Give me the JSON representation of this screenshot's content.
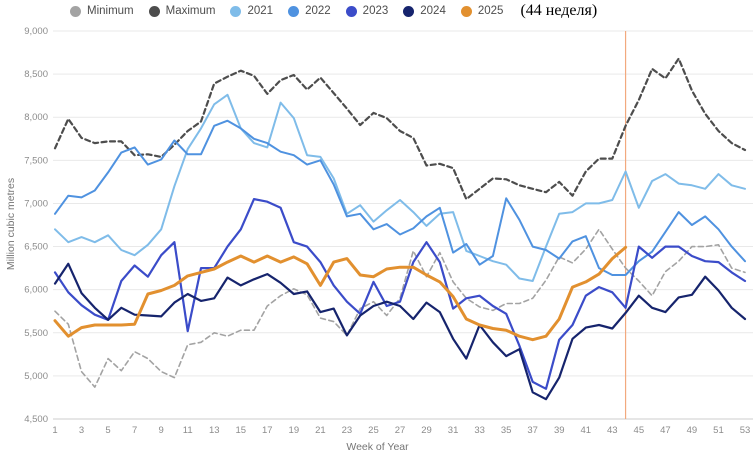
{
  "legend": {
    "annotation": "(44 неделя)"
  },
  "chart_data": {
    "type": "line",
    "title": "",
    "xlabel": "Week of Year",
    "ylabel": "Million cubic metres",
    "xlim": [
      1,
      53
    ],
    "ylim": [
      4500,
      9000
    ],
    "x_ticks": [
      1,
      3,
      5,
      7,
      9,
      11,
      13,
      15,
      17,
      19,
      21,
      23,
      25,
      27,
      29,
      31,
      33,
      35,
      37,
      39,
      41,
      43,
      45,
      47,
      49,
      51,
      53
    ],
    "y_ticks": [
      9000,
      8500,
      8000,
      7500,
      7000,
      6500,
      6000,
      5500,
      5000,
      4500
    ],
    "grid": true,
    "legend_position": "top",
    "marker_line": {
      "week": 44,
      "color": "#f2a97e"
    },
    "colors": {
      "grid": "#e9e9e9",
      "axis": "#cccccc",
      "tick_text": "#8c8c8c"
    },
    "series": [
      {
        "name": "Minimum",
        "color": "#a3a3a3",
        "style": "dashed",
        "width": 1.6,
        "values": [
          5750,
          5600,
          5050,
          4870,
          5200,
          5060,
          5280,
          5200,
          5050,
          4980,
          5360,
          5390,
          5500,
          5460,
          5530,
          5530,
          5810,
          5930,
          6010,
          5940,
          5670,
          5630,
          5470,
          5780,
          5860,
          5700,
          5900,
          6450,
          6150,
          6430,
          6090,
          5900,
          5800,
          5760,
          5840,
          5840,
          5900,
          6110,
          6380,
          6310,
          6470,
          6700,
          6470,
          6250,
          6100,
          5930,
          6210,
          6330,
          6500,
          6500,
          6520,
          6250,
          6200
        ]
      },
      {
        "name": "Maximum",
        "color": "#4d4d4d",
        "style": "dashed",
        "width": 2.2,
        "values": [
          7640,
          7980,
          7760,
          7700,
          7720,
          7720,
          7560,
          7570,
          7540,
          7680,
          7840,
          7950,
          8390,
          8470,
          8540,
          8480,
          8270,
          8430,
          8490,
          8320,
          8460,
          8280,
          8100,
          7910,
          8050,
          7990,
          7840,
          7760,
          7440,
          7460,
          7410,
          7050,
          7170,
          7290,
          7280,
          7210,
          7170,
          7130,
          7250,
          7090,
          7370,
          7520,
          7520,
          7900,
          8200,
          8560,
          8450,
          8680,
          8310,
          8040,
          7840,
          7700,
          7620
        ]
      },
      {
        "name": "2021",
        "color": "#7fbce9",
        "style": "solid",
        "width": 2,
        "values": [
          6700,
          6550,
          6610,
          6550,
          6630,
          6460,
          6400,
          6520,
          6700,
          7200,
          7630,
          7870,
          8150,
          8260,
          7870,
          7700,
          7650,
          8170,
          7990,
          7560,
          7540,
          7290,
          6880,
          6980,
          6790,
          6920,
          7040,
          6900,
          6740,
          6880,
          6900,
          6450,
          6390,
          6330,
          6290,
          6130,
          6100,
          6500,
          6880,
          6900,
          7000,
          7000,
          7040,
          7370,
          6950,
          7260,
          7340,
          7230,
          7210,
          7170,
          7340,
          7210,
          7170
        ]
      },
      {
        "name": "2022",
        "color": "#4f92e0",
        "style": "solid",
        "width": 2,
        "values": [
          6880,
          7090,
          7070,
          7150,
          7360,
          7590,
          7650,
          7450,
          7510,
          7730,
          7570,
          7570,
          7900,
          7960,
          7870,
          7750,
          7700,
          7600,
          7560,
          7450,
          7500,
          7220,
          6850,
          6880,
          6700,
          6760,
          6640,
          6710,
          6850,
          6950,
          6430,
          6530,
          6290,
          6390,
          7060,
          6810,
          6500,
          6460,
          6360,
          6560,
          6620,
          6250,
          6170,
          6170,
          6330,
          6440,
          6670,
          6900,
          6750,
          6850,
          6700,
          6500,
          6330
        ]
      },
      {
        "name": "2023",
        "color": "#3b4cc9",
        "style": "solid",
        "width": 2.2,
        "values": [
          6200,
          5970,
          5820,
          5710,
          5650,
          6100,
          6280,
          6150,
          6400,
          6550,
          5520,
          6250,
          6250,
          6500,
          6700,
          7050,
          7020,
          6950,
          6550,
          6500,
          6320,
          6050,
          5860,
          5720,
          6090,
          5810,
          5860,
          6320,
          6550,
          6320,
          5780,
          5900,
          5930,
          5810,
          5720,
          5350,
          4930,
          4850,
          5420,
          5590,
          5930,
          6030,
          5970,
          5790,
          6500,
          6370,
          6500,
          6500,
          6390,
          6330,
          6320,
          6200,
          6100
        ]
      },
      {
        "name": "2024",
        "color": "#16246d",
        "style": "solid",
        "width": 2.2,
        "values": [
          6070,
          6300,
          5960,
          5790,
          5650,
          5790,
          5710,
          5700,
          5690,
          5850,
          5950,
          5870,
          5900,
          6140,
          6050,
          6120,
          6180,
          6080,
          5950,
          5980,
          5740,
          5780,
          5470,
          5700,
          5810,
          5860,
          5810,
          5660,
          5850,
          5740,
          5430,
          5200,
          5590,
          5390,
          5230,
          5310,
          4810,
          4730,
          4980,
          5430,
          5560,
          5590,
          5550,
          5730,
          5930,
          5790,
          5740,
          5910,
          5940,
          6150,
          5990,
          5790,
          5660
        ]
      },
      {
        "name": "2025",
        "color": "#e2902f",
        "style": "solid",
        "width": 3,
        "values": [
          5640,
          5460,
          5560,
          5590,
          5590,
          5590,
          5600,
          5950,
          5990,
          6050,
          6160,
          6200,
          6240,
          6320,
          6390,
          6320,
          6390,
          6320,
          6380,
          6300,
          6050,
          6320,
          6360,
          6170,
          6150,
          6240,
          6260,
          6260,
          6170,
          6090,
          5920,
          5660,
          5590,
          5550,
          5530,
          5460,
          5420,
          5460,
          5660,
          6030,
          6090,
          6180,
          6360,
          6490
        ]
      }
    ]
  }
}
